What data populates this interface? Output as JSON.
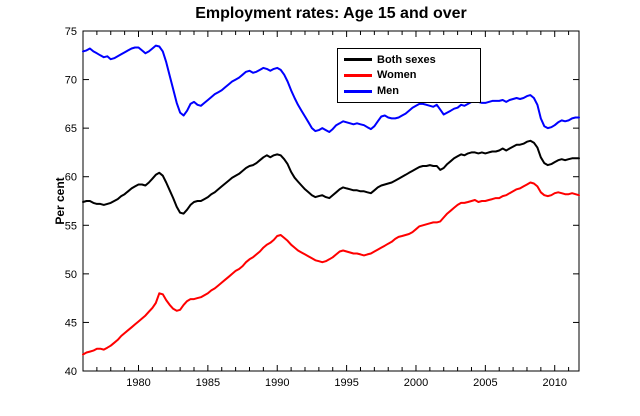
{
  "chart_data": {
    "type": "line",
    "title": "Employment rates: Age 15 and over",
    "xlabel": "",
    "ylabel": "Per cent",
    "x_range": [
      1976.0,
      2011.75
    ],
    "ylim": [
      40,
      75
    ],
    "y_ticks": [
      40,
      45,
      50,
      55,
      60,
      65,
      70,
      75
    ],
    "x_ticks_labeled": [
      1980,
      1985,
      1990,
      1995,
      2000,
      2005,
      2010
    ],
    "x_tick_minor_interval": 1,
    "grid": false,
    "legend_position": "upper-right-inside",
    "x_start": 1976.0,
    "x_step": 0.25,
    "series": [
      {
        "name": "Both sexes",
        "color": "#000000",
        "values": [
          57.4,
          57.5,
          57.5,
          57.3,
          57.2,
          57.2,
          57.1,
          57.2,
          57.3,
          57.5,
          57.7,
          58.0,
          58.2,
          58.5,
          58.8,
          59.0,
          59.2,
          59.2,
          59.1,
          59.4,
          59.8,
          60.2,
          60.4,
          60.1,
          59.4,
          58.6,
          57.8,
          56.9,
          56.3,
          56.2,
          56.6,
          57.1,
          57.4,
          57.5,
          57.5,
          57.7,
          57.9,
          58.2,
          58.4,
          58.7,
          59.0,
          59.3,
          59.6,
          59.9,
          60.1,
          60.3,
          60.6,
          60.9,
          61.1,
          61.2,
          61.4,
          61.7,
          62.0,
          62.2,
          62.0,
          62.2,
          62.3,
          62.2,
          61.8,
          61.3,
          60.5,
          59.9,
          59.5,
          59.1,
          58.7,
          58.4,
          58.1,
          57.9,
          58.0,
          58.1,
          57.9,
          57.8,
          58.1,
          58.4,
          58.7,
          58.9,
          58.8,
          58.7,
          58.6,
          58.6,
          58.5,
          58.5,
          58.4,
          58.3,
          58.6,
          58.9,
          59.1,
          59.2,
          59.3,
          59.4,
          59.6,
          59.8,
          60.0,
          60.2,
          60.4,
          60.6,
          60.8,
          61.0,
          61.1,
          61.1,
          61.2,
          61.1,
          61.1,
          60.7,
          60.9,
          61.3,
          61.6,
          61.9,
          62.1,
          62.3,
          62.2,
          62.4,
          62.5,
          62.5,
          62.4,
          62.5,
          62.4,
          62.5,
          62.6,
          62.6,
          62.7,
          62.9,
          62.7,
          62.9,
          63.1,
          63.3,
          63.3,
          63.4,
          63.6,
          63.7,
          63.5,
          63.0,
          62.0,
          61.4,
          61.2,
          61.3,
          61.5,
          61.7,
          61.8,
          61.7,
          61.8,
          61.9,
          61.9,
          61.9
        ]
      },
      {
        "name": "Women",
        "color": "#ff0000",
        "values": [
          41.7,
          41.9,
          42.0,
          42.1,
          42.3,
          42.3,
          42.2,
          42.4,
          42.6,
          42.9,
          43.2,
          43.6,
          43.9,
          44.2,
          44.5,
          44.8,
          45.1,
          45.4,
          45.7,
          46.1,
          46.5,
          47.0,
          48.0,
          47.9,
          47.3,
          46.8,
          46.4,
          46.2,
          46.3,
          46.8,
          47.2,
          47.4,
          47.4,
          47.5,
          47.6,
          47.8,
          48.0,
          48.3,
          48.5,
          48.8,
          49.1,
          49.4,
          49.7,
          50.0,
          50.3,
          50.5,
          50.8,
          51.2,
          51.5,
          51.7,
          52.0,
          52.3,
          52.7,
          53.0,
          53.2,
          53.5,
          53.9,
          54.0,
          53.7,
          53.4,
          53.0,
          52.7,
          52.4,
          52.2,
          52.0,
          51.8,
          51.6,
          51.4,
          51.3,
          51.2,
          51.3,
          51.5,
          51.7,
          52.0,
          52.3,
          52.4,
          52.3,
          52.2,
          52.1,
          52.1,
          52.0,
          51.9,
          52.0,
          52.1,
          52.3,
          52.5,
          52.7,
          52.9,
          53.1,
          53.3,
          53.6,
          53.8,
          53.9,
          54.0,
          54.1,
          54.3,
          54.6,
          54.9,
          55.0,
          55.1,
          55.2,
          55.3,
          55.3,
          55.4,
          55.8,
          56.2,
          56.5,
          56.8,
          57.1,
          57.3,
          57.3,
          57.4,
          57.5,
          57.6,
          57.4,
          57.5,
          57.5,
          57.6,
          57.7,
          57.8,
          57.8,
          58.0,
          58.1,
          58.3,
          58.5,
          58.7,
          58.8,
          59.0,
          59.2,
          59.4,
          59.3,
          59.0,
          58.4,
          58.1,
          58.0,
          58.1,
          58.3,
          58.4,
          58.3,
          58.2,
          58.2,
          58.3,
          58.2,
          58.1
        ]
      },
      {
        "name": "Men",
        "color": "#0000ff",
        "values": [
          72.9,
          73.0,
          73.2,
          72.9,
          72.7,
          72.5,
          72.3,
          72.4,
          72.1,
          72.2,
          72.4,
          72.6,
          72.8,
          73.0,
          73.2,
          73.3,
          73.3,
          73.0,
          72.7,
          72.9,
          73.2,
          73.5,
          73.4,
          72.9,
          71.8,
          70.4,
          69.0,
          67.6,
          66.6,
          66.3,
          66.8,
          67.5,
          67.7,
          67.4,
          67.3,
          67.6,
          67.9,
          68.2,
          68.5,
          68.7,
          68.9,
          69.2,
          69.5,
          69.8,
          70.0,
          70.2,
          70.5,
          70.8,
          70.9,
          70.7,
          70.8,
          71.0,
          71.2,
          71.1,
          70.9,
          71.1,
          71.2,
          71.0,
          70.5,
          69.8,
          68.9,
          68.1,
          67.4,
          66.8,
          66.2,
          65.6,
          65.0,
          64.7,
          64.8,
          65.0,
          64.8,
          64.6,
          64.9,
          65.3,
          65.5,
          65.7,
          65.6,
          65.5,
          65.4,
          65.5,
          65.4,
          65.3,
          65.1,
          64.9,
          65.2,
          65.7,
          66.2,
          66.3,
          66.1,
          66.0,
          66.0,
          66.1,
          66.3,
          66.5,
          66.8,
          67.1,
          67.3,
          67.5,
          67.5,
          67.4,
          67.3,
          67.2,
          67.4,
          66.9,
          66.4,
          66.6,
          66.8,
          67.0,
          67.1,
          67.4,
          67.3,
          67.5,
          67.7,
          67.9,
          67.7,
          67.6,
          67.6,
          67.7,
          67.8,
          67.8,
          67.8,
          67.9,
          67.7,
          67.9,
          68.0,
          68.1,
          68.0,
          68.1,
          68.3,
          68.4,
          68.1,
          67.4,
          66.0,
          65.2,
          65.0,
          65.1,
          65.3,
          65.6,
          65.8,
          65.7,
          65.8,
          66.0,
          66.1,
          66.1
        ]
      }
    ]
  }
}
